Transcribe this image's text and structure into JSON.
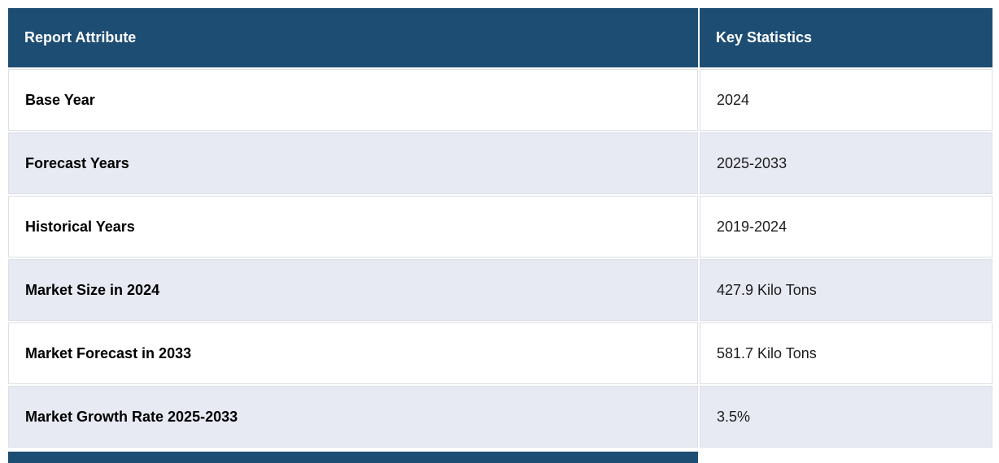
{
  "colors": {
    "header-bg": "#1E4D73",
    "header-text": "#FFFFFF",
    "row-bg": "#FFFFFF",
    "row-alt-bg": "#E7E9F3",
    "border": "#DCDFE6",
    "label-color": "#000000",
    "value-color": "#1C1C1C"
  },
  "table": {
    "columns": [
      {
        "label": "Report Attribute"
      },
      {
        "label": "Key Statistics"
      }
    ],
    "rows": [
      {
        "attribute": "Base Year",
        "value": "2024"
      },
      {
        "attribute": "Forecast Years",
        "value": "2025-2033"
      },
      {
        "attribute": "Historical Years",
        "value": "2019-2024"
      },
      {
        "attribute": "Market Size in 2024",
        "value": "427.9 Kilo Tons"
      },
      {
        "attribute": "Market Forecast in 2033",
        "value": "581.7 Kilo Tons"
      },
      {
        "attribute": "Market Growth Rate 2025-2033",
        "value": "3.5%"
      }
    ]
  },
  "chart_data": {
    "type": "table",
    "title": "Report Attribute / Key Statistics",
    "columns": [
      "Report Attribute",
      "Key Statistics"
    ],
    "records": [
      [
        "Base Year",
        "2024"
      ],
      [
        "Forecast Years",
        "2025-2033"
      ],
      [
        "Historical Years",
        "2019-2024"
      ],
      [
        "Market Size in 2024",
        "427.9 Kilo Tons"
      ],
      [
        "Market Forecast in 2033",
        "581.7 Kilo Tons"
      ],
      [
        "Market Growth Rate 2025-2033",
        "3.5%"
      ]
    ],
    "key_numbers": {
      "base_year": 2024,
      "forecast_start": 2025,
      "forecast_end": 2033,
      "historical_start": 2019,
      "historical_end": 2024,
      "market_size_2024_kilo_tons": 427.9,
      "market_forecast_2033_kilo_tons": 581.7,
      "market_growth_rate_pct": 3.5
    }
  }
}
